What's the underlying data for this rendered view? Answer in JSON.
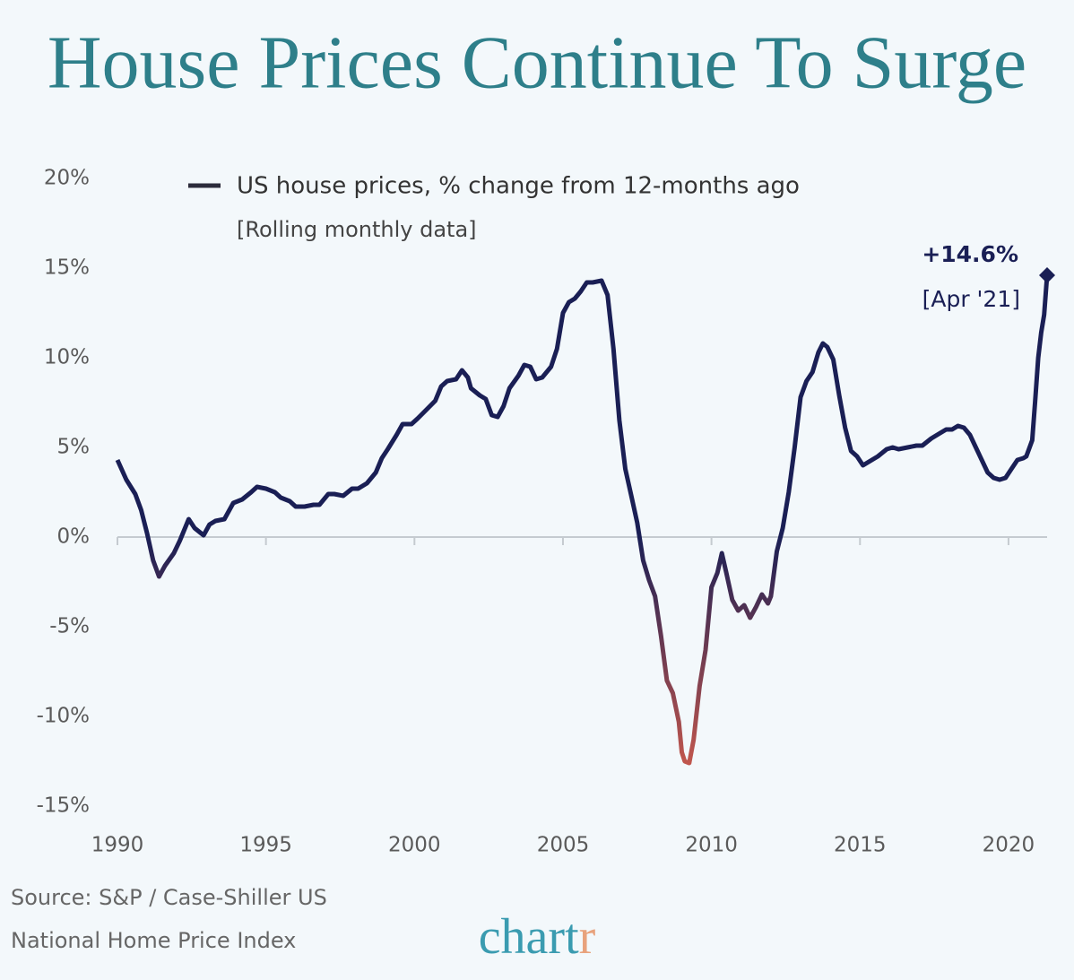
{
  "chart_data": {
    "type": "line",
    "title": "House Prices Continue To Surge",
    "subtitle": "[Rolling monthly data]",
    "annotations": [
      "+14.6%",
      "[Apr '21]"
    ],
    "source": [
      "Source: S&P / Case-Shiller US",
      "National Home Price Index"
    ],
    "logo": [
      "chart",
      "r"
    ],
    "x": [
      1990.0,
      1990.3,
      1990.6,
      1990.8,
      1991.0,
      1991.2,
      1991.4,
      1991.6,
      1991.9,
      1992.1,
      1992.3,
      1992.4,
      1992.6,
      1992.9,
      1993.1,
      1993.3,
      1993.6,
      1993.9,
      1994.2,
      1994.5,
      1994.7,
      1995.0,
      1995.3,
      1995.5,
      1995.8,
      1996.0,
      1996.3,
      1996.6,
      1996.8,
      1997.1,
      1997.3,
      1997.6,
      1997.9,
      1998.1,
      1998.4,
      1998.7,
      1998.9,
      1999.1,
      1999.4,
      1999.6,
      1999.9,
      2000.1,
      2000.4,
      2000.7,
      2000.9,
      2001.1,
      2001.4,
      2001.6,
      2001.8,
      2001.9,
      2002.2,
      2002.4,
      2002.6,
      2002.8,
      2003.0,
      2003.2,
      2003.5,
      2003.7,
      2003.9,
      2004.1,
      2004.3,
      2004.6,
      2004.8,
      2005.0,
      2005.2,
      2005.4,
      2005.6,
      2005.8,
      2006.0,
      2006.3,
      2006.5,
      2006.7,
      2006.9,
      2007.1,
      2007.3,
      2007.5,
      2007.7,
      2007.9,
      2008.1,
      2008.3,
      2008.5,
      2008.7,
      2008.9,
      2009.0,
      2009.1,
      2009.25,
      2009.4,
      2009.6,
      2009.8,
      2010.0,
      2010.2,
      2010.35,
      2010.5,
      2010.7,
      2010.9,
      2011.1,
      2011.3,
      2011.5,
      2011.7,
      2011.9,
      2012.0,
      2012.2,
      2012.4,
      2012.6,
      2012.8,
      2013.0,
      2013.2,
      2013.4,
      2013.6,
      2013.75,
      2013.9,
      2014.1,
      2014.3,
      2014.5,
      2014.7,
      2014.9,
      2015.1,
      2015.3,
      2015.6,
      2015.9,
      2016.1,
      2016.3,
      2016.6,
      2016.9,
      2017.1,
      2017.4,
      2017.7,
      2017.9,
      2018.1,
      2018.3,
      2018.5,
      2018.7,
      2018.9,
      2019.1,
      2019.3,
      2019.5,
      2019.7,
      2019.9,
      2020.1,
      2020.3,
      2020.5,
      2020.6,
      2020.8,
      2020.9,
      2021.0,
      2021.1,
      2021.2,
      2021.3
    ],
    "series": [
      {
        "name": "US house prices, % change from 12-months ago",
        "color": "#1a1f55",
        "negative_color": "#c0564d",
        "values": [
          4.3,
          3.2,
          2.4,
          1.5,
          0.2,
          -1.3,
          -2.2,
          -1.6,
          -0.9,
          -0.2,
          0.6,
          1.0,
          0.5,
          0.1,
          0.7,
          0.9,
          1.0,
          1.9,
          2.1,
          2.5,
          2.8,
          2.7,
          2.5,
          2.2,
          2.0,
          1.7,
          1.7,
          1.8,
          1.8,
          2.4,
          2.4,
          2.3,
          2.7,
          2.7,
          3.0,
          3.6,
          4.4,
          4.9,
          5.7,
          6.3,
          6.3,
          6.6,
          7.1,
          7.6,
          8.4,
          8.7,
          8.8,
          9.3,
          8.9,
          8.3,
          7.9,
          7.7,
          6.8,
          6.7,
          7.3,
          8.3,
          9.0,
          9.6,
          9.5,
          8.8,
          8.9,
          9.5,
          10.5,
          12.5,
          13.1,
          13.3,
          13.7,
          14.2,
          14.2,
          14.3,
          13.5,
          10.5,
          6.5,
          3.8,
          2.3,
          0.8,
          -1.3,
          -2.4,
          -3.3,
          -5.5,
          -8.0,
          -8.7,
          -10.3,
          -12.0,
          -12.5,
          -12.6,
          -11.3,
          -8.3,
          -6.3,
          -2.8,
          -2.0,
          -0.9,
          -2.0,
          -3.5,
          -4.1,
          -3.8,
          -4.5,
          -3.9,
          -3.2,
          -3.7,
          -3.3,
          -0.8,
          0.5,
          2.5,
          5.0,
          7.8,
          8.7,
          9.2,
          10.3,
          10.8,
          10.6,
          9.9,
          7.9,
          6.1,
          4.8,
          4.5,
          4.0,
          4.2,
          4.5,
          4.9,
          5.0,
          4.9,
          5.0,
          5.1,
          5.1,
          5.5,
          5.8,
          6.0,
          6.0,
          6.2,
          6.1,
          5.7,
          5.0,
          4.3,
          3.6,
          3.3,
          3.2,
          3.3,
          3.8,
          4.3,
          4.4,
          4.5,
          5.4,
          7.6,
          10.0,
          11.4,
          12.4,
          14.6
        ]
      }
    ],
    "xlim": [
      1990,
      2021.3
    ],
    "xticks": [
      1990,
      1995,
      2000,
      2005,
      2010,
      2015,
      2020
    ],
    "ylim": [
      -15,
      20
    ],
    "yticks": [
      {
        "value": -15,
        "label": "-15%"
      },
      {
        "value": -10,
        "label": "-10%"
      },
      {
        "value": -5,
        "label": "-5%"
      },
      {
        "value": 0,
        "label": "0%"
      },
      {
        "value": 5,
        "label": "5%"
      },
      {
        "value": 10,
        "label": "10%"
      },
      {
        "value": 15,
        "label": "15%"
      },
      {
        "value": 20,
        "label": "20%"
      }
    ],
    "grid": false
  }
}
